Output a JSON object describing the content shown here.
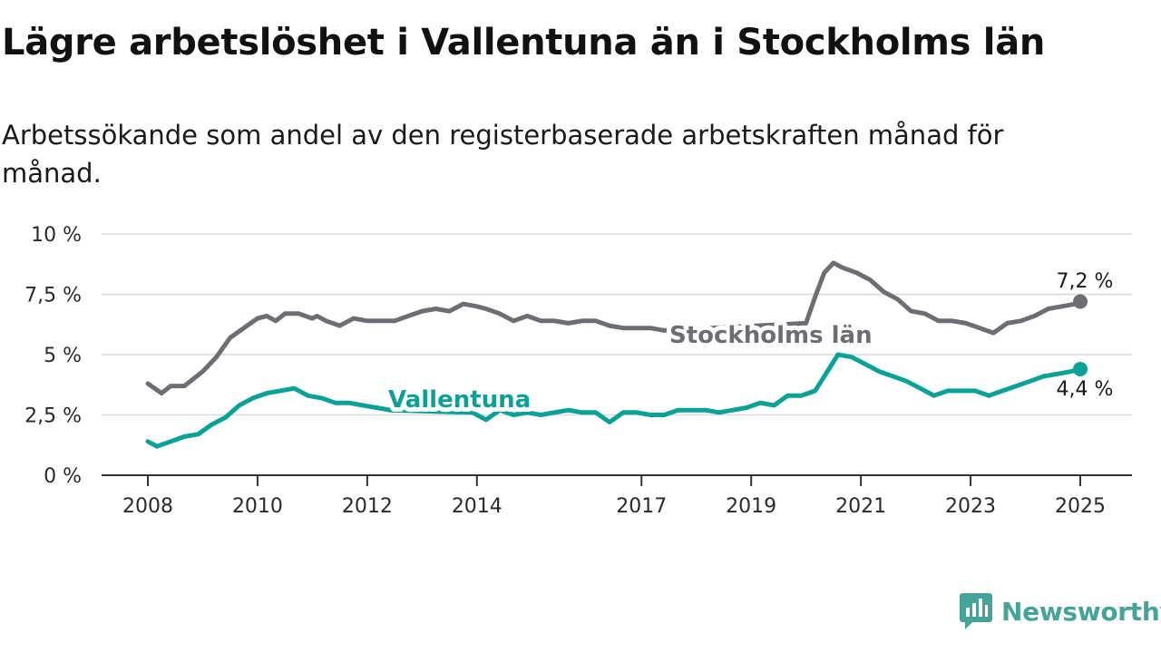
{
  "header": {
    "title": "Lägre arbetslöshet i Vallentuna än i Stockholms län",
    "subtitle": "Arbetssökande som andel av den registerbaserade arbetskraften månad för månad."
  },
  "branding": {
    "name": "Newsworthy",
    "icon": "newsworthy-logo-icon",
    "color": "#45a39a"
  },
  "chart_data": {
    "type": "line",
    "title": "Lägre arbetslöshet i Vallentuna än i Stockholms län",
    "subtitle": "Arbetssökande som andel av den registerbaserade arbetskraften månad för månad.",
    "xlabel": "",
    "ylabel": "",
    "x_range": [
      "2008-01",
      "2025-01"
    ],
    "ylim": [
      0,
      10
    ],
    "y_ticks": [
      0,
      2.5,
      5,
      7.5,
      10
    ],
    "y_tick_labels": [
      "0 %",
      "2,5 %",
      "5 %",
      "7,5 %",
      "10 %"
    ],
    "x_ticks": [
      2008,
      2010,
      2012,
      2014,
      2017,
      2019,
      2021,
      2023,
      2025
    ],
    "x_tick_labels": [
      "2008",
      "2010",
      "2012",
      "2014",
      "2017",
      "2019",
      "2021",
      "2023",
      "2025"
    ],
    "grid": "horizontal",
    "legend": "direct labels on lines",
    "series": [
      {
        "name": "Stockholms län",
        "color": "#6e6d73",
        "end_label": "7,2 %",
        "points": [
          [
            "2008-01",
            3.8
          ],
          [
            "2008-04",
            3.4
          ],
          [
            "2008-06",
            3.7
          ],
          [
            "2008-09",
            3.7
          ],
          [
            "2009-01",
            4.3
          ],
          [
            "2009-04",
            4.9
          ],
          [
            "2009-07",
            5.7
          ],
          [
            "2009-10",
            6.1
          ],
          [
            "2010-01",
            6.5
          ],
          [
            "2010-03",
            6.6
          ],
          [
            "2010-05",
            6.4
          ],
          [
            "2010-07",
            6.7
          ],
          [
            "2010-10",
            6.7
          ],
          [
            "2011-01",
            6.5
          ],
          [
            "2011-02",
            6.6
          ],
          [
            "2011-04",
            6.4
          ],
          [
            "2011-07",
            6.2
          ],
          [
            "2011-10",
            6.5
          ],
          [
            "2012-01",
            6.4
          ],
          [
            "2012-04",
            6.4
          ],
          [
            "2012-07",
            6.4
          ],
          [
            "2012-10",
            6.6
          ],
          [
            "2013-01",
            6.8
          ],
          [
            "2013-04",
            6.9
          ],
          [
            "2013-07",
            6.8
          ],
          [
            "2013-10",
            7.1
          ],
          [
            "2014-01",
            7.0
          ],
          [
            "2014-03",
            6.9
          ],
          [
            "2014-06",
            6.7
          ],
          [
            "2014-09",
            6.4
          ],
          [
            "2014-12",
            6.6
          ],
          [
            "2015-03",
            6.4
          ],
          [
            "2015-06",
            6.4
          ],
          [
            "2015-09",
            6.3
          ],
          [
            "2015-12",
            6.4
          ],
          [
            "2016-03",
            6.4
          ],
          [
            "2016-06",
            6.2
          ],
          [
            "2016-09",
            6.1
          ],
          [
            "2016-12",
            6.1
          ],
          [
            "2017-03",
            6.1
          ],
          [
            "2017-06",
            6.0
          ],
          [
            "2020-01",
            6.3
          ],
          [
            "2020-03",
            7.4
          ],
          [
            "2020-05",
            8.4
          ],
          [
            "2020-07",
            8.8
          ],
          [
            "2020-09",
            8.6
          ],
          [
            "2020-12",
            8.4
          ],
          [
            "2021-03",
            8.1
          ],
          [
            "2021-06",
            7.6
          ],
          [
            "2021-09",
            7.3
          ],
          [
            "2021-12",
            6.8
          ],
          [
            "2022-03",
            6.7
          ],
          [
            "2022-06",
            6.4
          ],
          [
            "2022-09",
            6.4
          ],
          [
            "2022-12",
            6.3
          ],
          [
            "2023-03",
            6.1
          ],
          [
            "2023-06",
            5.9
          ],
          [
            "2023-09",
            6.3
          ],
          [
            "2023-12",
            6.4
          ],
          [
            "2024-03",
            6.6
          ],
          [
            "2024-06",
            6.9
          ],
          [
            "2024-09",
            7.0
          ],
          [
            "2024-12",
            7.1
          ],
          [
            "2025-01",
            7.2
          ]
        ]
      },
      {
        "name": "Vallentuna",
        "color": "#0aa196",
        "end_label": "4,4 %",
        "points": [
          [
            "2008-01",
            1.4
          ],
          [
            "2008-03",
            1.2
          ],
          [
            "2008-06",
            1.4
          ],
          [
            "2008-09",
            1.6
          ],
          [
            "2008-12",
            1.7
          ],
          [
            "2009-03",
            2.1
          ],
          [
            "2009-06",
            2.4
          ],
          [
            "2009-09",
            2.9
          ],
          [
            "2009-12",
            3.2
          ],
          [
            "2010-03",
            3.4
          ],
          [
            "2010-06",
            3.5
          ],
          [
            "2010-09",
            3.6
          ],
          [
            "2010-12",
            3.3
          ],
          [
            "2011-03",
            3.2
          ],
          [
            "2011-06",
            3.0
          ],
          [
            "2011-09",
            3.0
          ],
          [
            "2011-12",
            2.9
          ],
          [
            "2012-03",
            2.8
          ],
          [
            "2012-06",
            2.7
          ],
          [
            "2013-12",
            2.6
          ],
          [
            "2014-03",
            2.3
          ],
          [
            "2014-06",
            2.7
          ],
          [
            "2014-09",
            2.5
          ],
          [
            "2014-12",
            2.6
          ],
          [
            "2015-03",
            2.5
          ],
          [
            "2015-06",
            2.6
          ],
          [
            "2015-09",
            2.7
          ],
          [
            "2015-12",
            2.6
          ],
          [
            "2016-03",
            2.6
          ],
          [
            "2016-06",
            2.2
          ],
          [
            "2016-09",
            2.6
          ],
          [
            "2016-12",
            2.6
          ],
          [
            "2017-03",
            2.5
          ],
          [
            "2017-06",
            2.5
          ],
          [
            "2017-09",
            2.7
          ],
          [
            "2017-12",
            2.7
          ],
          [
            "2018-03",
            2.7
          ],
          [
            "2018-06",
            2.6
          ],
          [
            "2018-09",
            2.7
          ],
          [
            "2018-12",
            2.8
          ],
          [
            "2019-03",
            3.0
          ],
          [
            "2019-06",
            2.9
          ],
          [
            "2019-09",
            3.3
          ],
          [
            "2019-12",
            3.3
          ],
          [
            "2020-03",
            3.5
          ],
          [
            "2020-06",
            4.4
          ],
          [
            "2020-08",
            5.0
          ],
          [
            "2020-11",
            4.9
          ],
          [
            "2021-02",
            4.6
          ],
          [
            "2021-05",
            4.3
          ],
          [
            "2021-08",
            4.1
          ],
          [
            "2021-11",
            3.9
          ],
          [
            "2022-02",
            3.6
          ],
          [
            "2022-05",
            3.3
          ],
          [
            "2022-08",
            3.5
          ],
          [
            "2022-11",
            3.5
          ],
          [
            "2023-02",
            3.5
          ],
          [
            "2023-05",
            3.3
          ],
          [
            "2023-08",
            3.5
          ],
          [
            "2023-11",
            3.7
          ],
          [
            "2024-02",
            3.9
          ],
          [
            "2024-05",
            4.1
          ],
          [
            "2024-08",
            4.2
          ],
          [
            "2024-11",
            4.3
          ],
          [
            "2025-01",
            4.4
          ]
        ]
      }
    ]
  }
}
